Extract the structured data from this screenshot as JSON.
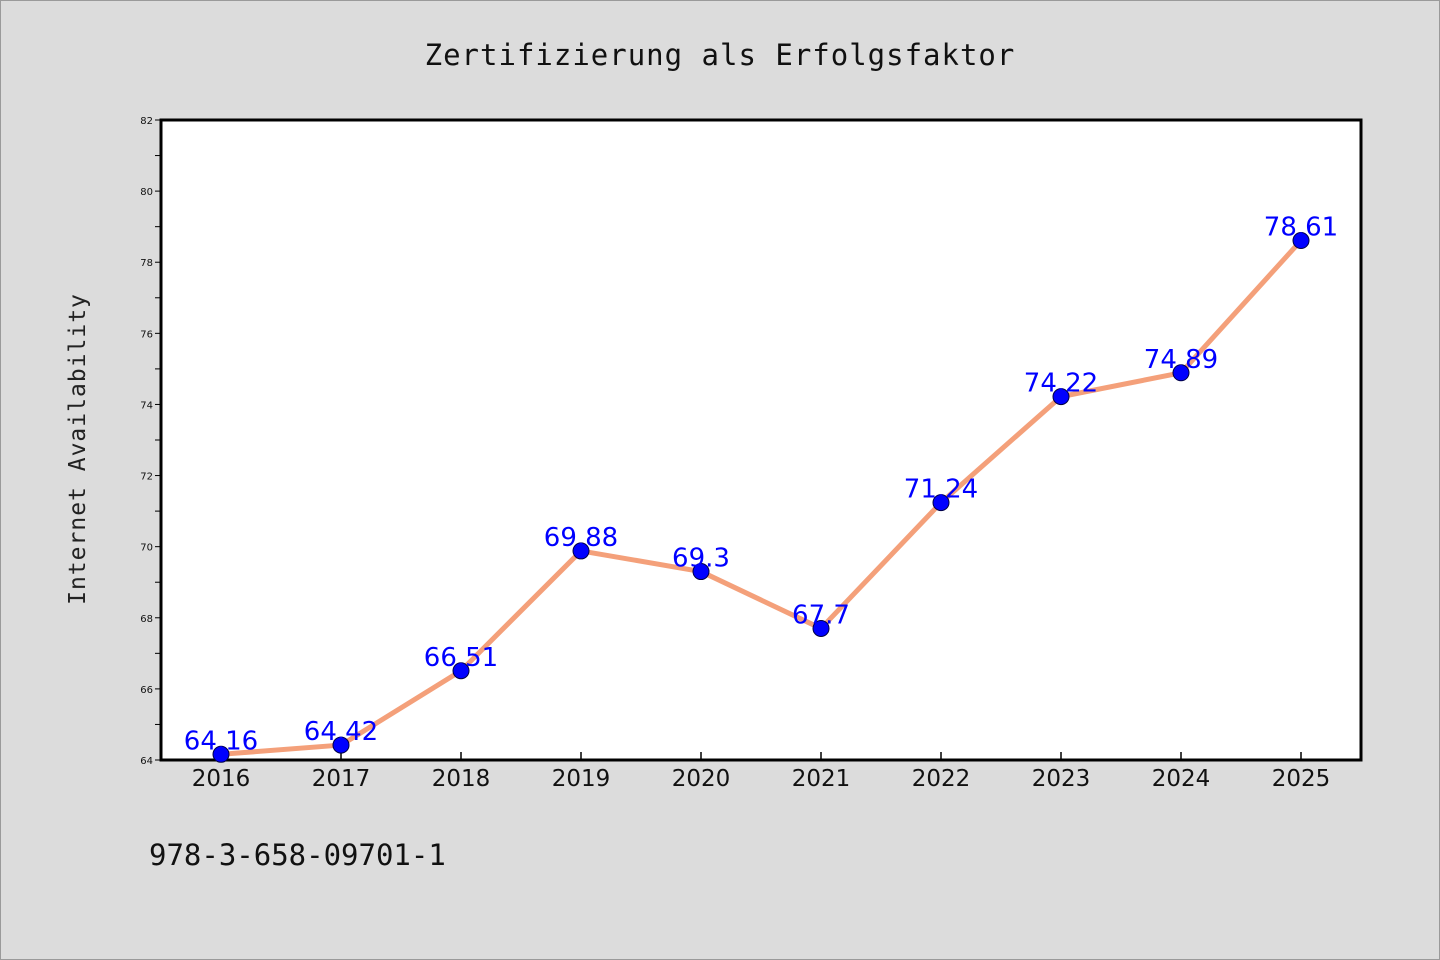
{
  "chart_data": {
    "type": "line",
    "title": "Zertifizierung als Erfolgsfaktor",
    "xlabel": "",
    "ylabel": "Internet Availability",
    "x": [
      "2016",
      "2017",
      "2018",
      "2019",
      "2020",
      "2021",
      "2022",
      "2023",
      "2024",
      "2025"
    ],
    "series": [
      {
        "values": [
          64.16,
          64.42,
          66.51,
          69.88,
          69.3,
          67.7,
          71.24,
          74.22,
          74.89,
          78.61
        ],
        "data_labels": [
          "64.16",
          "64.42",
          "66.51",
          "69.88",
          "69.3",
          "67.7",
          "71.24",
          "74.22",
          "74.89",
          "78.61"
        ],
        "line_color": "#f4a07a",
        "marker_color": "#0000ff",
        "label_color": "#0000ff"
      }
    ],
    "ylim": [
      64,
      82
    ],
    "y_ticks": [
      "64",
      "66",
      "68",
      "70",
      "72",
      "74",
      "76",
      "78",
      "80",
      "82"
    ],
    "grid": false,
    "legend": "none"
  },
  "footer": {
    "isbn": "978-3-658-09701-1"
  },
  "colors": {
    "background": "#dcdcdc",
    "plot_background": "#ffffff",
    "axis": "#000000"
  }
}
